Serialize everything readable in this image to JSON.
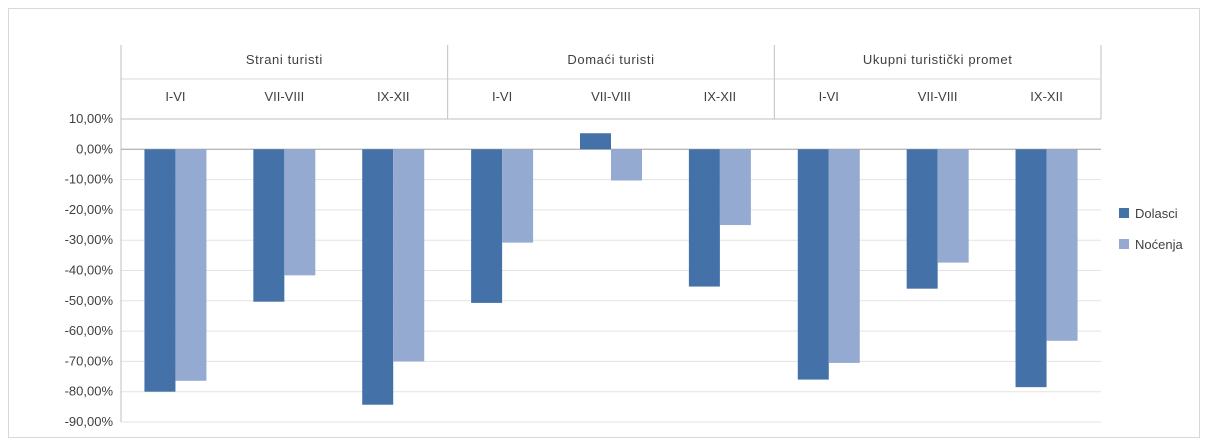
{
  "chart_data": {
    "type": "bar",
    "groups": [
      {
        "label": "Strani turisti",
        "categories": [
          "I-VI",
          "VII-VIII",
          "IX-XII"
        ]
      },
      {
        "label": "Domaći turisti",
        "categories": [
          "I-VI",
          "VII-VIII",
          "IX-XII"
        ]
      },
      {
        "label": "Ukupni turistički promet",
        "categories": [
          "I-VI",
          "VII-VIII",
          "IX-XII"
        ]
      }
    ],
    "series": [
      {
        "name": "Dolasci",
        "color": "#4472a8",
        "values": [
          -80.0,
          -50.3,
          -84.3,
          -50.7,
          5.3,
          -45.3,
          -76.0,
          -46.0,
          -78.5
        ]
      },
      {
        "name": "Noćenja",
        "color": "#95aad1",
        "values": [
          -76.4,
          -41.6,
          -70.0,
          -30.8,
          -10.3,
          -25.0,
          -70.5,
          -37.4,
          -63.2
        ]
      }
    ],
    "ylim": [
      -90,
      10
    ],
    "yticks": [
      "10,00%",
      "0,00%",
      "-10,00%",
      "-20,00%",
      "-30,00%",
      "-40,00%",
      "-50,00%",
      "-60,00%",
      "-70,00%",
      "-80,00%",
      "-90,00%"
    ],
    "grid": true,
    "legend_position": "right"
  }
}
